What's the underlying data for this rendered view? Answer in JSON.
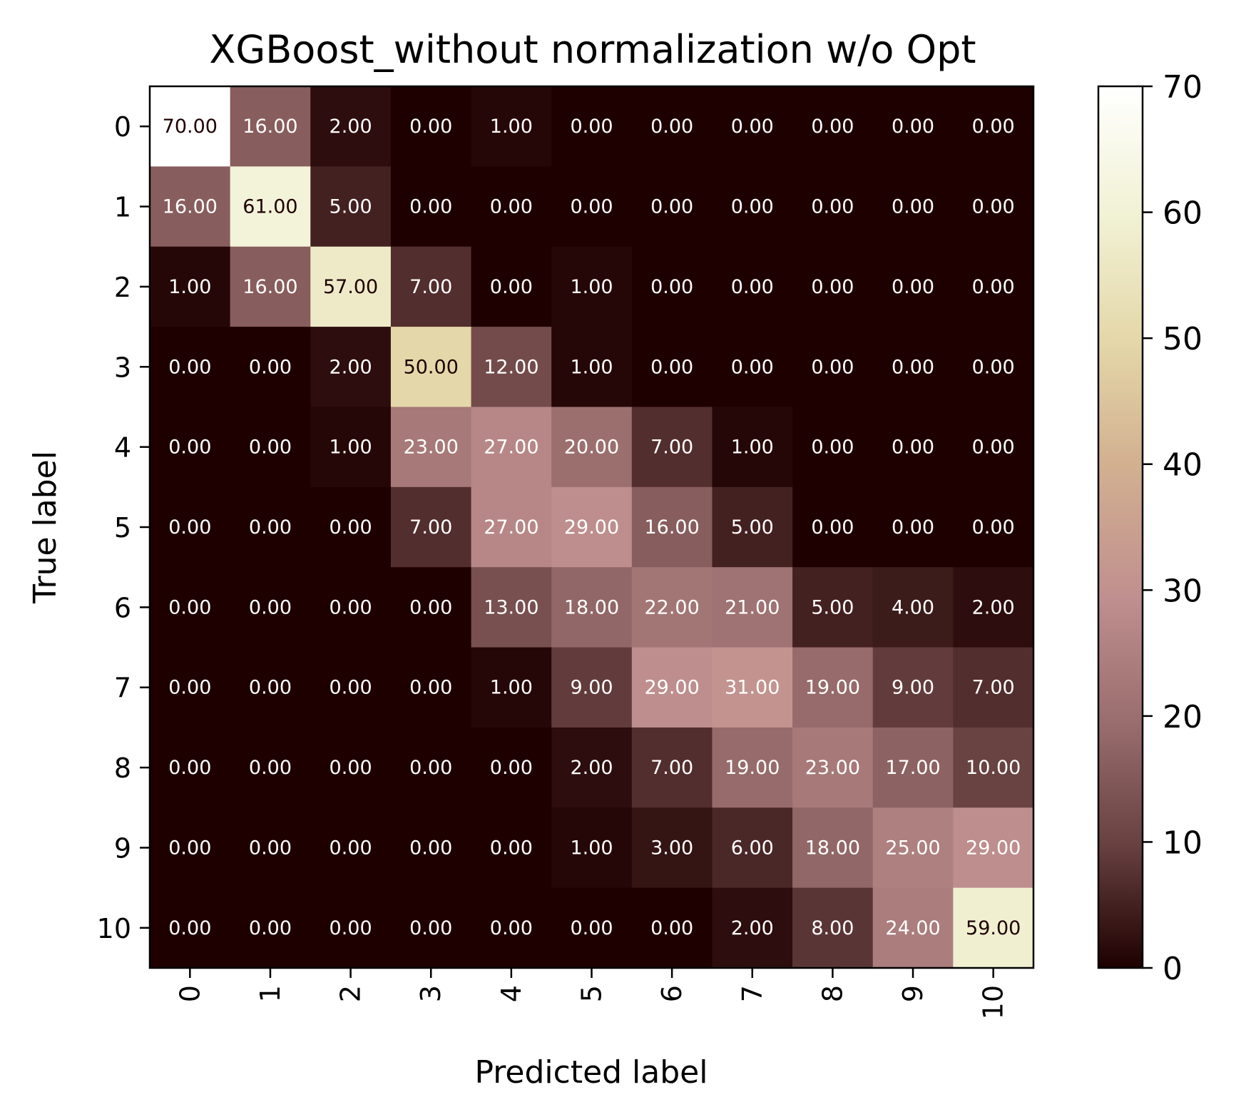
{
  "chart_data": {
    "type": "heatmap",
    "title": "XGBoost_without normalization w/o Opt",
    "xlabel": "Predicted label",
    "ylabel": "True label",
    "x_categories": [
      "0",
      "1",
      "2",
      "3",
      "4",
      "5",
      "6",
      "7",
      "8",
      "9",
      "10"
    ],
    "y_categories": [
      "0",
      "1",
      "2",
      "3",
      "4",
      "5",
      "6",
      "7",
      "8",
      "9",
      "10"
    ],
    "matrix": [
      [
        70,
        16,
        2,
        0,
        1,
        0,
        0,
        0,
        0,
        0,
        0
      ],
      [
        16,
        61,
        5,
        0,
        0,
        0,
        0,
        0,
        0,
        0,
        0
      ],
      [
        1,
        16,
        57,
        7,
        0,
        1,
        0,
        0,
        0,
        0,
        0
      ],
      [
        0,
        0,
        2,
        50,
        12,
        1,
        0,
        0,
        0,
        0,
        0
      ],
      [
        0,
        0,
        1,
        23,
        27,
        20,
        7,
        1,
        0,
        0,
        0
      ],
      [
        0,
        0,
        0,
        7,
        27,
        29,
        16,
        5,
        0,
        0,
        0
      ],
      [
        0,
        0,
        0,
        0,
        13,
        18,
        22,
        21,
        5,
        4,
        2
      ],
      [
        0,
        0,
        0,
        0,
        1,
        9,
        29,
        31,
        19,
        9,
        7
      ],
      [
        0,
        0,
        0,
        0,
        0,
        2,
        7,
        19,
        23,
        17,
        10
      ],
      [
        0,
        0,
        0,
        0,
        0,
        1,
        3,
        6,
        18,
        25,
        29
      ],
      [
        0,
        0,
        0,
        0,
        0,
        0,
        0,
        2,
        8,
        24,
        59
      ]
    ],
    "value_format_decimals": 2,
    "colorbar": {
      "range": [
        0,
        70
      ],
      "ticks": [
        0,
        10,
        20,
        30,
        40,
        50,
        60,
        70
      ],
      "colormap": "pink"
    },
    "x_tick_rotation": "vertical"
  }
}
